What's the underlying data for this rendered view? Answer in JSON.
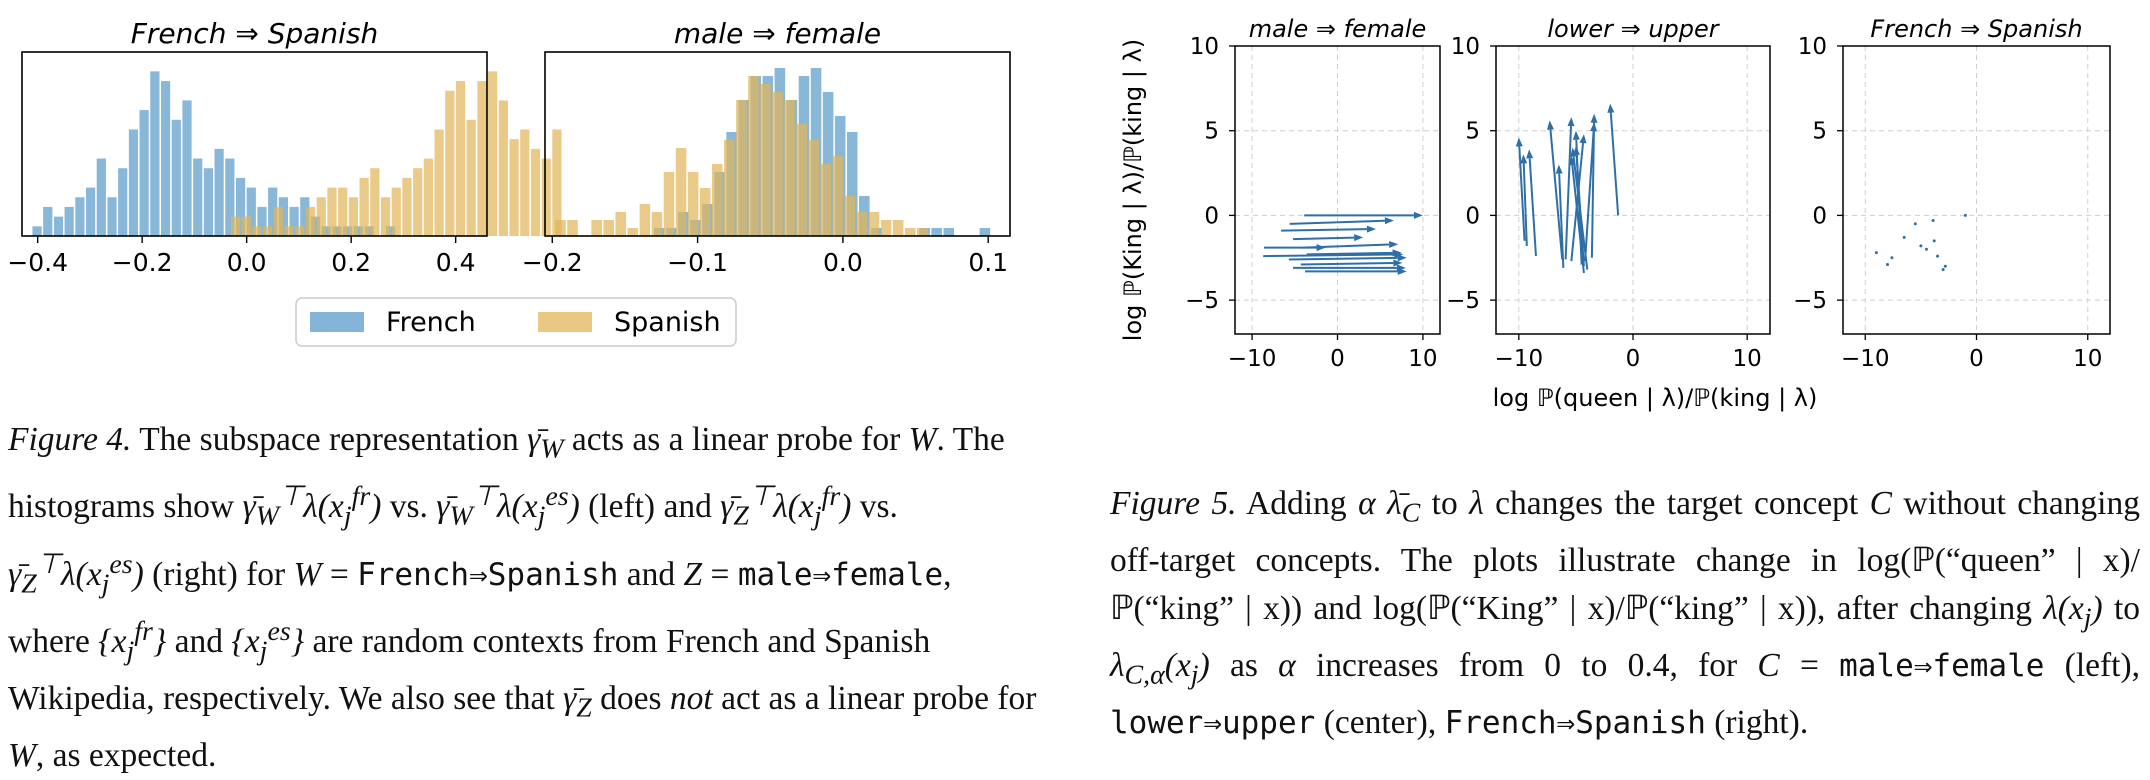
{
  "figure4": {
    "histograms": {
      "type": "bar",
      "legend": {
        "position": "bottom-center",
        "entries": [
          "French",
          "Spanish"
        ]
      },
      "colors": {
        "French": "#5b9bc9",
        "Spanish": "#e0b55a"
      },
      "panels": [
        {
          "title": "French ⇒ Spanish",
          "xlim": [
            -0.43,
            0.46
          ],
          "xticks": [
            -0.4,
            -0.2,
            0.0,
            0.2,
            0.4
          ],
          "xtick_labels": [
            "−0.4",
            "−0.2",
            "0.0",
            "0.2",
            "0.4"
          ],
          "bin_width": 0.0205,
          "series": [
            {
              "name": "French",
              "x_start": -0.41,
              "counts": [
                1,
                3,
                2,
                3,
                4,
                5,
                8,
                4,
                7,
                11,
                13,
                17,
                16,
                12,
                14,
                8,
                7,
                9,
                8,
                6,
                5,
                3,
                5,
                4,
                3,
                4,
                2,
                1,
                1,
                1,
                1,
                1,
                0,
                1
              ]
            },
            {
              "name": "Spanish",
              "x_start": -0.03,
              "counts": [
                2,
                2,
                1,
                1,
                3,
                1,
                1,
                3,
                4,
                5,
                5,
                4,
                6,
                7,
                4,
                5,
                6,
                7,
                8,
                11,
                15,
                16,
                12,
                16,
                17,
                14,
                10,
                11,
                9,
                8,
                11
              ]
            }
          ]
        },
        {
          "title": "male ⇒ female",
          "xlim": [
            -0.205,
            0.115
          ],
          "xticks": [
            -0.2,
            -0.1,
            0.0,
            0.1
          ],
          "xtick_labels": [
            "−0.2",
            "−0.1",
            "0.0",
            "0.1"
          ],
          "bin_width": 0.0083,
          "series": [
            {
              "name": "French",
              "x_start": -0.13,
              "counts": [
                1,
                1,
                3,
                2,
                4,
                8,
                13,
                17,
                20,
                20,
                21,
                17,
                20,
                21,
                18,
                15,
                13,
                5,
                1,
                0,
                0,
                0,
                1,
                1,
                1,
                0,
                0,
                1
              ]
            },
            {
              "name": "Spanish",
              "x_start": -0.198,
              "counts": [
                2,
                2,
                0,
                2,
                2,
                3,
                1,
                4,
                3,
                8,
                11,
                8,
                6,
                9,
                12,
                17,
                20,
                19,
                18,
                17,
                14,
                12,
                9,
                10,
                5,
                3,
                3,
                2,
                2,
                1,
                1
              ]
            }
          ]
        }
      ]
    },
    "caption": {
      "label": "Figure 4.",
      "s1": " The subspace representation ",
      "s2": " acts as a linear probe for ",
      "s3": ". The histograms show ",
      "s4": " vs. ",
      "s5": " (left) and ",
      "s6": " vs. ",
      "s7": " (right) for ",
      "s8": " = ",
      "s9": " and ",
      "s10": " = ",
      "s11": ", where ",
      "s12": " and ",
      "s13": " are random contexts from French and Spanish Wikipedia, respectively. We also see that ",
      "s14": " does ",
      "not": "not",
      "s15": " act as a linear probe for ",
      "s16": ", as expected.",
      "concept_W": "French⇒Spanish",
      "concept_Z": "male⇒female"
    }
  },
  "figure5": {
    "arrows": {
      "type": "scatter",
      "ylabel": "log ℙ(King | λ)/ℙ(king | λ)",
      "xlabel": "log ℙ(queen | λ)/ℙ(king | λ)",
      "xlim": [
        -12,
        12
      ],
      "ylim": [
        -7,
        10
      ],
      "xticks": [
        -10,
        0,
        10
      ],
      "yticks": [
        -5,
        0,
        5,
        10
      ],
      "xtick_labels": [
        "−10",
        "0",
        "10"
      ],
      "ytick_labels": [
        "−5",
        "0",
        "5",
        "10"
      ],
      "grid": true,
      "color": "#2f6fa7",
      "panels": [
        {
          "title": "male ⇒ female",
          "arrows": [
            [
              -3.9,
              0.0,
              10.0,
              0.0
            ],
            [
              -5.6,
              -0.5,
              6.6,
              -0.3
            ],
            [
              -6.6,
              -0.9,
              4.5,
              -0.8
            ],
            [
              -5.2,
              -1.4,
              3.0,
              -1.3
            ],
            [
              -4.0,
              -1.9,
              7.1,
              -1.7
            ],
            [
              -3.6,
              -2.3,
              7.5,
              -2.2
            ],
            [
              -8.7,
              -2.4,
              7.7,
              -2.3
            ],
            [
              -5.7,
              -2.6,
              8.1,
              -2.5
            ],
            [
              -4.3,
              -2.9,
              7.6,
              -2.8
            ],
            [
              -5.2,
              -3.1,
              8.0,
              -3.1
            ],
            [
              -3.8,
              -3.3,
              8.1,
              -3.3
            ],
            [
              -8.6,
              -1.9,
              -1.4,
              -1.9
            ]
          ]
        },
        {
          "title": "lower ⇒ upper",
          "arrows": [
            [
              -1.3,
              0.0,
              -2.0,
              6.6
            ],
            [
              -3.6,
              -2.5,
              -3.4,
              6.0
            ],
            [
              -5.9,
              -2.6,
              -5.4,
              5.8
            ],
            [
              -4.2,
              -2.7,
              -3.4,
              5.5
            ],
            [
              -6.2,
              -2.6,
              -7.3,
              5.6
            ],
            [
              -4.5,
              -2.9,
              -5.0,
              5.0
            ],
            [
              -5.4,
              -2.7,
              -4.3,
              4.8
            ],
            [
              -4.3,
              -3.0,
              -5.0,
              4.1
            ],
            [
              -9.5,
              -1.5,
              -10.0,
              4.6
            ],
            [
              -8.5,
              -2.4,
              -9.1,
              3.9
            ],
            [
              -4.0,
              -3.2,
              -5.3,
              4.0
            ],
            [
              -6.1,
              -3.1,
              -6.5,
              3.0
            ],
            [
              -9.3,
              -1.8,
              -9.6,
              3.6
            ],
            [
              -4.3,
              -3.4,
              -5.4,
              3.5
            ]
          ]
        },
        {
          "title": "French ⇒ Spanish",
          "points": [
            [
              -9.0,
              -2.2
            ],
            [
              -8.0,
              -2.9
            ],
            [
              -6.5,
              -1.3
            ],
            [
              -5.5,
              -0.5
            ],
            [
              -5.0,
              -1.8
            ],
            [
              -4.5,
              -2.0
            ],
            [
              -3.9,
              -0.3
            ],
            [
              -3.8,
              -1.5
            ],
            [
              -3.5,
              -2.4
            ],
            [
              -3.0,
              -3.2
            ],
            [
              -2.8,
              -3.0
            ],
            [
              -1.0,
              0.0
            ],
            [
              -7.6,
              -2.5
            ]
          ]
        }
      ]
    },
    "caption": {
      "label": "Figure 5.",
      "s1": " Adding ",
      "s2": " to ",
      "s3": " changes the target concept ",
      "s4": " without changing off-target concepts. The plots illustrate change in ",
      "s5": " and ",
      "s6": ", after changing ",
      "s7": " to ",
      "s8": " as ",
      "s9": " increases from 0 to 0.4, for ",
      "s10": " = ",
      "s11": " (left), ",
      "s12": " (center), ",
      "s13": " (right).",
      "expr1": "log(ℙ(“queen” | x)/ℙ(“king” | x))",
      "expr2": "log(ℙ(“King” | x)/ℙ(“king” | x))",
      "concept_C1": "male⇒female",
      "concept_C2": "lower⇒upper",
      "concept_C3": "French⇒Spanish"
    }
  }
}
